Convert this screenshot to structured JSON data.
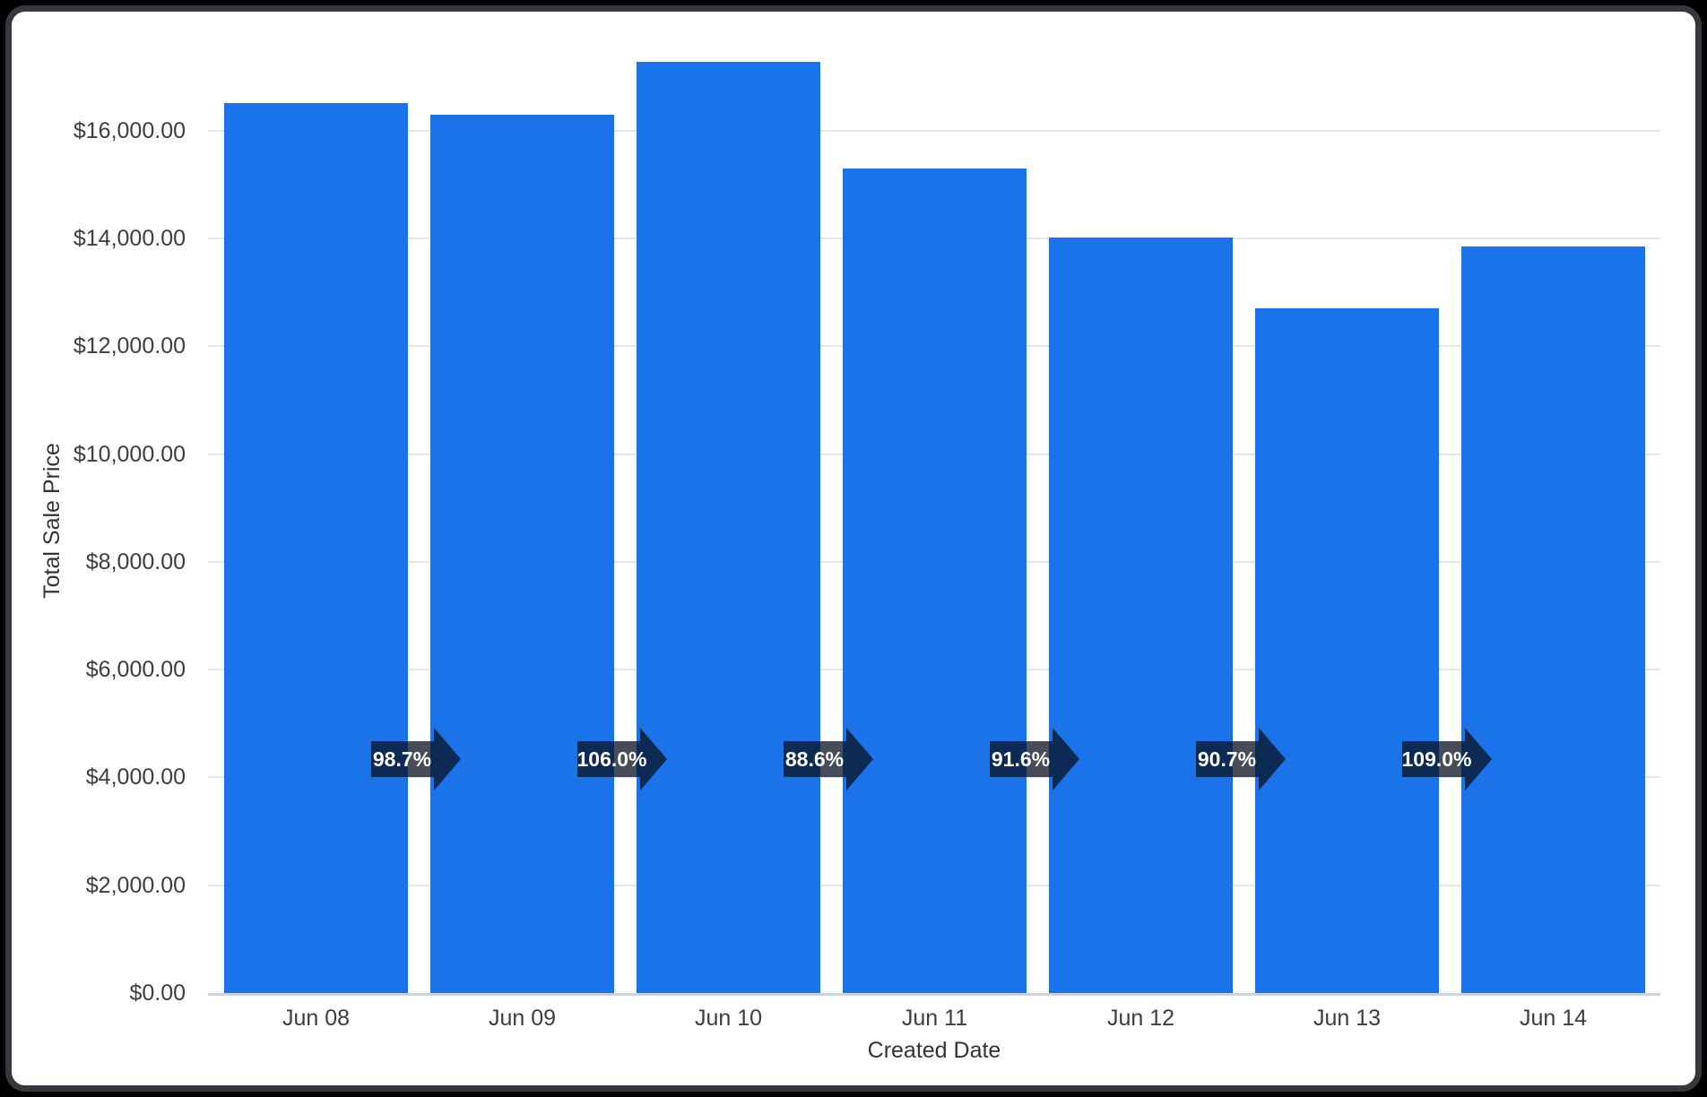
{
  "chart_data": {
    "type": "bar",
    "title": "",
    "xlabel": "Created Date",
    "ylabel": "Total Sale Price",
    "categories": [
      "Jun 08",
      "Jun 09",
      "Jun 10",
      "Jun 11",
      "Jun 12",
      "Jun 13",
      "Jun 14"
    ],
    "values": [
      16510,
      16290,
      17270,
      15300,
      14015,
      12710,
      13855
    ],
    "y_tick_labels": [
      "$0.00",
      "$2,000.00",
      "$4,000.00",
      "$6,000.00",
      "$8,000.00",
      "$10,000.00",
      "$12,000.00",
      "$14,000.00",
      "$16,000.00"
    ],
    "y_tick_values": [
      0,
      2000,
      4000,
      6000,
      8000,
      10000,
      12000,
      14000,
      16000
    ],
    "ylim": [
      0,
      17800
    ],
    "grid": "horizontal",
    "legend": "none",
    "annotations": [
      {
        "between": [
          "Jun 08",
          "Jun 09"
        ],
        "label": "98.7%"
      },
      {
        "between": [
          "Jun 09",
          "Jun 10"
        ],
        "label": "106.0%"
      },
      {
        "between": [
          "Jun 10",
          "Jun 11"
        ],
        "label": "88.6%"
      },
      {
        "between": [
          "Jun 11",
          "Jun 12"
        ],
        "label": "91.6%"
      },
      {
        "between": [
          "Jun 12",
          "Jun 13"
        ],
        "label": "90.7%"
      },
      {
        "between": [
          "Jun 13",
          "Jun 14"
        ],
        "label": "109.0%"
      }
    ],
    "colors": {
      "bar": "#1a73e8",
      "gridline": "#e6e6e6",
      "baseline": "#ccd3e0",
      "axis_text": "#3d3d3d",
      "arrow_fill_rgba": "rgba(8, 18, 33, 0.75)",
      "arrow_text": "#ffffff",
      "card_border": "#35393d",
      "page_background": "#000000",
      "card_background": "#ffffff"
    }
  }
}
